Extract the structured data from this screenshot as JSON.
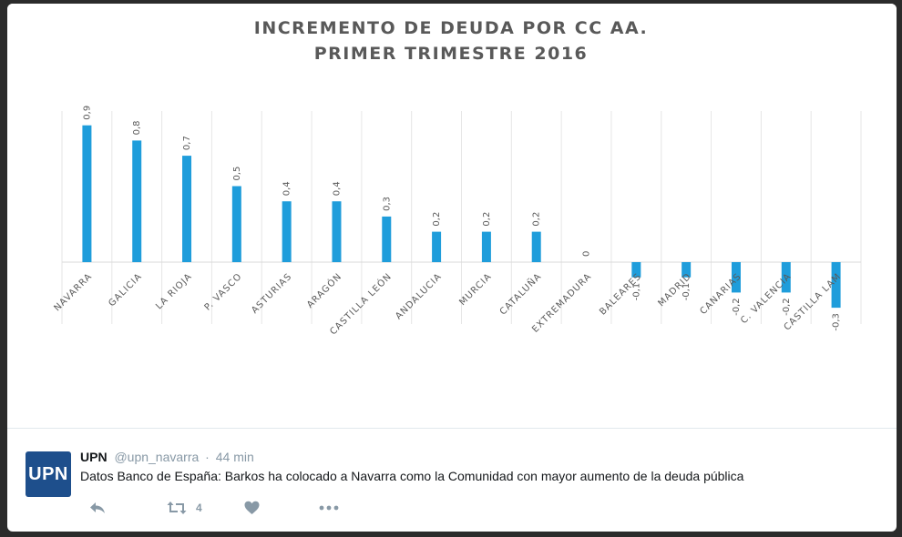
{
  "chart_data": {
    "type": "bar",
    "title_lines": [
      "INCREMENTO DE DEUDA POR CC AA.",
      "PRIMER TRIMESTRE 2016"
    ],
    "categories": [
      "NAVARRA",
      "GALICIA",
      "LA RIOJA",
      "P. VASCO",
      "ASTURIAS",
      "ARAGÓN",
      "CASTILLA LEÓN",
      "ANDALUCIA",
      "MURCIA",
      "CATALUÑA",
      "EXTREMADURA",
      "BALEARES",
      "MADRID",
      "CANARIAS",
      "C. VALENCIA",
      "CASTILLA LAM"
    ],
    "values": [
      0.9,
      0.8,
      0.7,
      0.5,
      0.4,
      0.4,
      0.3,
      0.2,
      0.2,
      0.2,
      0,
      -0.1,
      -0.1,
      -0.2,
      -0.2,
      -0.3
    ],
    "value_labels": [
      "0,9",
      "0,8",
      "0,7",
      "0,5",
      "0,4",
      "0,4",
      "0,3",
      "0,2",
      "0,2",
      "0,2",
      "0",
      "-0,1",
      "-0,1",
      "-0,2",
      "-0,2",
      "-0,3"
    ],
    "ylim": [
      -0.4,
      1.0
    ],
    "grid": true,
    "bar_color": "#1f9ddb"
  },
  "tweet": {
    "avatar_text": "UPN",
    "name": "UPN",
    "handle": "@upn_navarra",
    "separator": "·",
    "time": "44 min",
    "text": "Datos Banco de España: Barkos ha colocado a Navarra como la Comunidad con mayor aumento de la deuda pública",
    "retweet_count": "4",
    "icons": [
      "reply-icon",
      "retweet-icon",
      "like-icon",
      "more-icon"
    ]
  }
}
